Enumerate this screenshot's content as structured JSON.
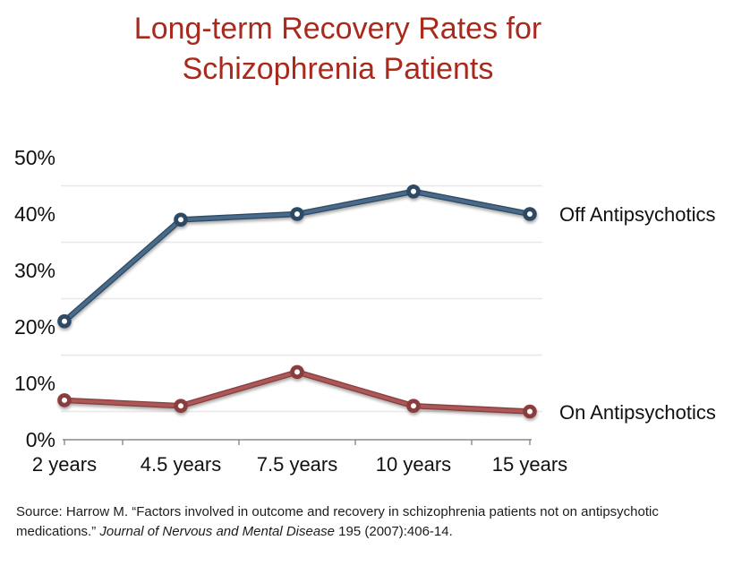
{
  "title": {
    "line1": "Long-term Recovery Rates for",
    "line2": "Schizophrenia Patients",
    "color": "#a82a1d"
  },
  "chart_data": {
    "type": "line",
    "title": "Long-term Recovery Rates for Schizophrenia Patients",
    "categories": [
      "2 years",
      "4.5 years",
      "7.5 years",
      "10 years",
      "15 years"
    ],
    "y_tick_labels": [
      "50%",
      "40%",
      "30%",
      "20%",
      "10%",
      "0%"
    ],
    "y_tick_values": [
      50,
      40,
      30,
      20,
      10,
      0
    ],
    "gridline_values": [
      45,
      35,
      25,
      15,
      5
    ],
    "ylim": [
      0,
      50
    ],
    "grid": "horizontal-only",
    "legend_position": "right-of-line-end",
    "series": [
      {
        "name": "Off Antipsychotics",
        "color": "#4a6a8a",
        "color_dark": "#2e4a63",
        "marker": "open-circle",
        "values": [
          21,
          39,
          40,
          44,
          40
        ]
      },
      {
        "name": "On Antipsychotics",
        "color": "#ab5958",
        "color_dark": "#8a3d3c",
        "marker": "open-circle",
        "values": [
          7,
          6,
          12,
          6,
          5
        ]
      }
    ]
  },
  "source": {
    "prefix": "Source: Harrow M. “Factors involved in outcome and recovery in schizophrenia patients not on antipsychotic medications.” ",
    "journal": "Journal of Nervous and Mental Disease",
    "suffix": " 195 (2007):406-14."
  },
  "colors": {
    "background": "#ffffff",
    "axis": "#8a8a8a",
    "gridline": "#e8e8e8",
    "text": "#111111"
  }
}
